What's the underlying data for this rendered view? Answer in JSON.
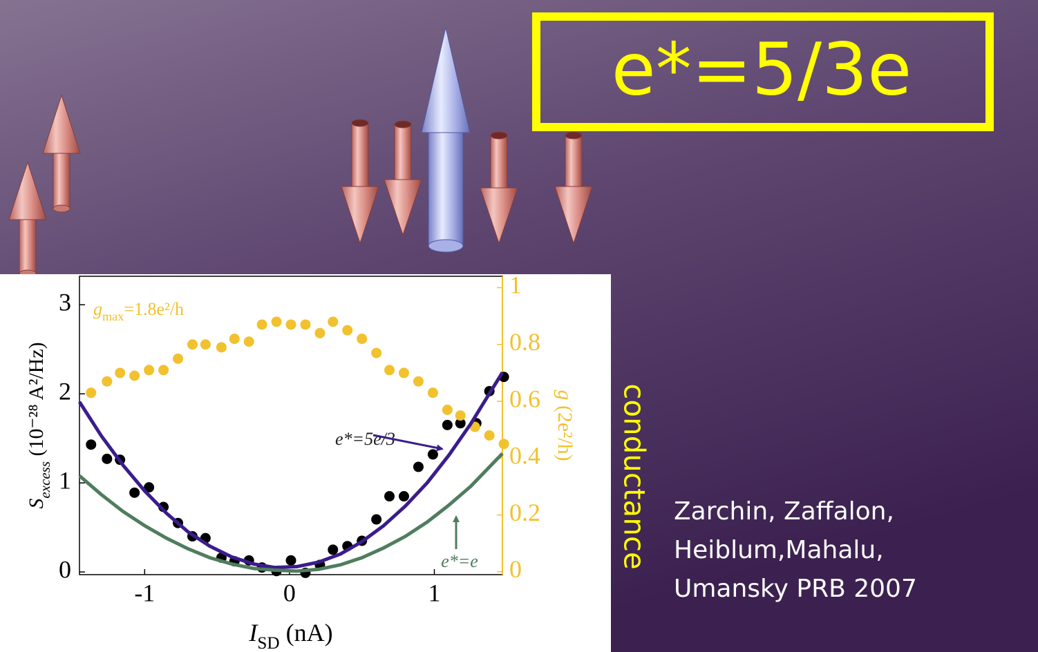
{
  "slide": {
    "headline": "e*=5/3e",
    "side_label": "conductance",
    "citation": [
      "Zarchin, Zaffalon,",
      "Heiblum,Mahalu,",
      "Umansky PRB 2007"
    ]
  },
  "chart_data": {
    "type": "scatter",
    "xlabel": {
      "symbol": "I",
      "subscript": "SD",
      "unit": "(nA)"
    },
    "ylabel": {
      "symbol": "S",
      "subscript": "excess",
      "unit": "(10⁻²⁸ A²/Hz)"
    },
    "y2label": {
      "symbol": "g",
      "unit": "(2e²/h)"
    },
    "annotation": {
      "symbol": "g",
      "subscript": "max",
      "text": "=1.8e²/h"
    },
    "xlim": [
      -1.45,
      1.47
    ],
    "ylim": [
      -0.03,
      3.32
    ],
    "y2lim": [
      -0.01,
      1.04
    ],
    "xticks": [
      -1,
      0,
      1
    ],
    "yticks": [
      0,
      1,
      2,
      3
    ],
    "y2ticks": [
      0,
      0.2,
      0.4,
      0.6,
      0.8,
      1
    ],
    "y2color": "#f2c12e",
    "series": [
      {
        "type": "scatter",
        "color": "#000000",
        "x": [
          -1.37,
          -1.26,
          -1.17,
          -1.07,
          -0.97,
          -0.87,
          -0.77,
          -0.67,
          -0.58,
          -0.47,
          -0.38,
          -0.28,
          -0.19,
          -0.09,
          0.01,
          0.11,
          0.21,
          0.3,
          0.4,
          0.5,
          0.6,
          0.69,
          0.79,
          0.89,
          0.99,
          1.09,
          1.18,
          1.29,
          1.38,
          1.48
        ],
        "values": [
          1.43,
          1.27,
          1.26,
          0.89,
          0.95,
          0.73,
          0.55,
          0.4,
          0.38,
          0.16,
          0.12,
          0.13,
          0.05,
          0.01,
          0.13,
          -0.01,
          0.08,
          0.25,
          0.29,
          0.35,
          0.59,
          0.85,
          0.85,
          1.18,
          1.32,
          1.65,
          1.67,
          1.67,
          2.03,
          2.19
        ]
      },
      {
        "type": "scatter",
        "color": "#f2c12e",
        "axis": "y2",
        "x": [
          -1.37,
          -1.26,
          -1.17,
          -1.07,
          -0.97,
          -0.87,
          -0.77,
          -0.67,
          -0.58,
          -0.47,
          -0.38,
          -0.28,
          -0.19,
          -0.09,
          0.01,
          0.11,
          0.21,
          0.3,
          0.4,
          0.5,
          0.6,
          0.69,
          0.79,
          0.89,
          0.99,
          1.09,
          1.18,
          1.28,
          1.38,
          1.48
        ],
        "values": [
          0.63,
          0.67,
          0.7,
          0.69,
          0.71,
          0.71,
          0.75,
          0.8,
          0.8,
          0.79,
          0.82,
          0.81,
          0.87,
          0.88,
          0.87,
          0.87,
          0.84,
          0.88,
          0.85,
          0.82,
          0.77,
          0.71,
          0.7,
          0.67,
          0.63,
          0.57,
          0.55,
          0.51,
          0.48,
          0.45
        ]
      },
      {
        "type": "line",
        "name": "e*=5e/3",
        "color": "#3b1c8c",
        "x": [
          -1.45,
          -1.3,
          -1.15,
          -1.0,
          -0.85,
          -0.7,
          -0.55,
          -0.4,
          -0.25,
          -0.1,
          0.05,
          0.2,
          0.35,
          0.5,
          0.65,
          0.8,
          0.95,
          1.1,
          1.25,
          1.47
        ],
        "values": [
          1.91,
          1.53,
          1.2,
          0.91,
          0.66,
          0.45,
          0.29,
          0.17,
          0.09,
          0.05,
          0.06,
          0.11,
          0.2,
          0.34,
          0.52,
          0.74,
          1.0,
          1.31,
          1.66,
          2.24
        ]
      },
      {
        "type": "line",
        "name": "e*=e",
        "color": "#4f7d5e",
        "x": [
          -1.45,
          -1.3,
          -1.15,
          -1.0,
          -0.85,
          -0.7,
          -0.55,
          -0.4,
          -0.25,
          -0.1,
          0.05,
          0.2,
          0.35,
          0.5,
          0.65,
          0.8,
          0.95,
          1.1,
          1.25,
          1.47
        ],
        "values": [
          1.08,
          0.87,
          0.68,
          0.52,
          0.38,
          0.26,
          0.16,
          0.09,
          0.04,
          0.02,
          0.01,
          0.03,
          0.08,
          0.16,
          0.27,
          0.4,
          0.56,
          0.75,
          0.96,
          1.33
        ]
      }
    ]
  }
}
